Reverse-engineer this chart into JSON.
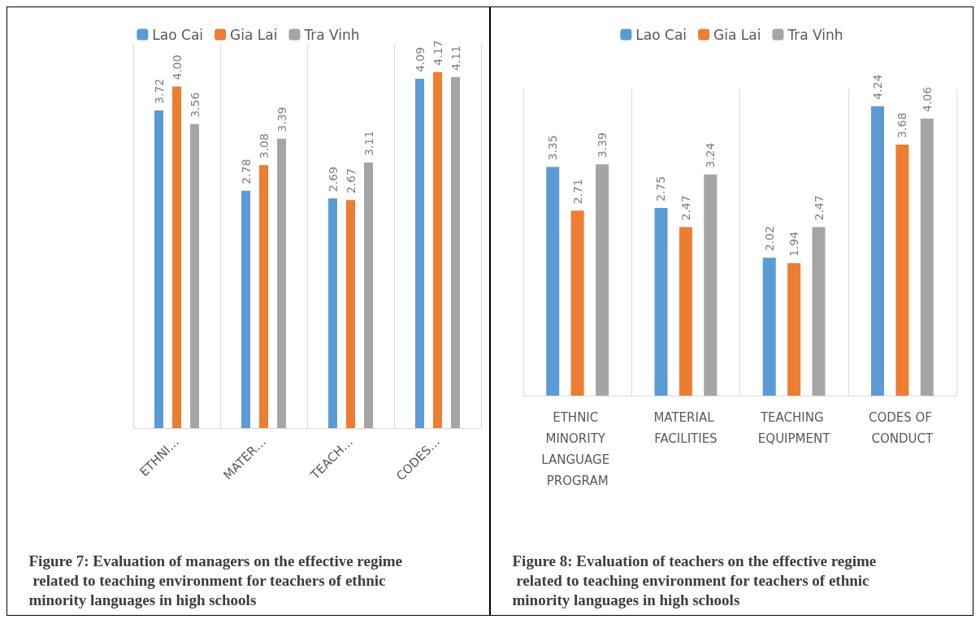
{
  "chart_data": [
    {
      "type": "bar",
      "title": "Figure 7: Evaluation of managers on the effective regime related to teaching environment for teachers of ethnic minority languages in high schools",
      "categories": [
        "ETHNI…",
        "MATER…",
        "TEACH…",
        "CODES…"
      ],
      "series": [
        {
          "name": "Lao Cai",
          "color": "#5b9bd5",
          "values": [
            3.72,
            2.78,
            2.69,
            4.09
          ],
          "value_labels": [
            "3.72",
            "2.78",
            "2.69",
            "4.09"
          ]
        },
        {
          "name": "Gia Lai",
          "color": "#ed7d31",
          "values": [
            4.0,
            3.08,
            2.67,
            4.17
          ],
          "value_labels": [
            "4.00",
            "3.08",
            "2.67",
            "4.17"
          ]
        },
        {
          "name": "Tra Vinh",
          "color": "#a5a5a5",
          "values": [
            3.56,
            3.39,
            3.11,
            4.11
          ],
          "value_labels": [
            "3.56",
            "3.39",
            "3.11",
            "4.11"
          ]
        }
      ],
      "grid": "x",
      "legend": "top",
      "tick_labels": "x"
    },
    {
      "type": "bar",
      "title": "Figure 8: Evaluation of teachers on the effective regime related to teaching environment for teachers of ethnic minority languages in high schools",
      "categories": [
        "ETHNIC MINORITY LANGUAGE PROGRAM",
        "MATERIAL FACILITIES",
        "TEACHING EQUIPMENT",
        "CODES OF CONDUCT"
      ],
      "series": [
        {
          "name": "Lao Cai",
          "color": "#5b9bd5",
          "values": [
            3.35,
            2.75,
            2.02,
            4.24
          ]
        },
        {
          "name": "Gia Lai",
          "color": "#ed7d31",
          "values": [
            2.71,
            2.47,
            1.94,
            3.68
          ]
        },
        {
          "name": "Tra Vinh",
          "color": "#a5a5a5",
          "values": [
            3.39,
            3.24,
            2.47,
            4.06
          ]
        }
      ],
      "data_labels": true,
      "grid": "x",
      "legend": "top",
      "tick_labels": "x"
    }
  ]
}
